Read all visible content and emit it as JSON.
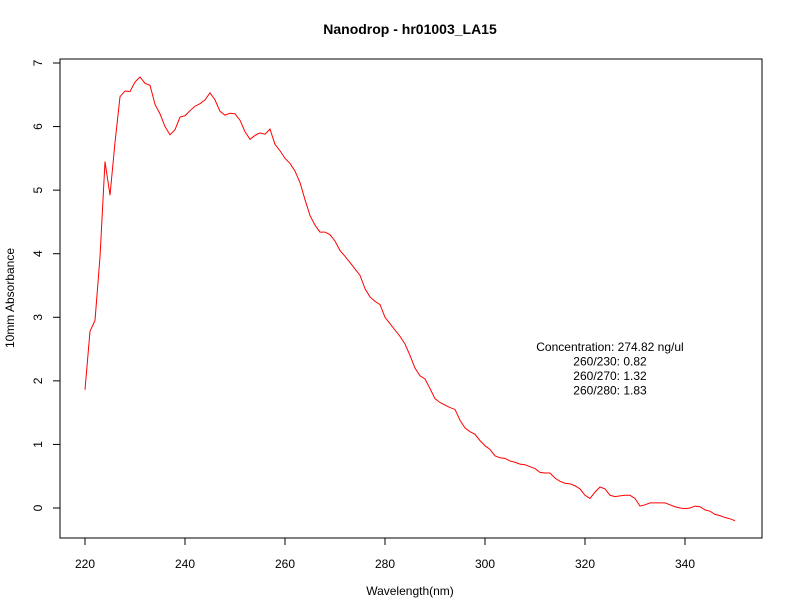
{
  "chart_data": {
    "type": "line",
    "title": "Nanodrop - hr01003_LA15",
    "xlabel": "Wavelength(nm)",
    "ylabel": "10mm Absorbance",
    "xlim": [
      220,
      350
    ],
    "ylim": [
      0,
      7
    ],
    "xticks": [
      220,
      240,
      260,
      280,
      300,
      320,
      340
    ],
    "yticks": [
      0,
      1,
      2,
      3,
      4,
      5,
      6,
      7
    ],
    "grid": false,
    "line_color": "#ff0000",
    "series": [
      {
        "x": [
          220,
          221,
          222,
          223,
          224,
          225,
          226,
          227,
          228,
          229,
          230,
          231,
          232,
          233,
          234,
          235,
          236,
          237,
          238,
          239,
          240,
          241,
          242,
          243,
          244,
          245,
          246,
          247,
          248,
          249,
          250,
          251,
          252,
          253,
          254,
          255,
          256,
          257,
          258,
          259,
          260,
          261,
          262,
          263,
          264,
          265,
          266,
          267,
          268,
          269,
          270,
          271,
          272,
          273,
          274,
          275,
          276,
          277,
          278,
          279,
          280,
          281,
          282,
          283,
          284,
          285,
          286,
          287,
          288,
          289,
          290,
          291,
          292,
          293,
          294,
          295,
          296,
          297,
          298,
          299,
          300,
          301,
          302,
          303,
          304,
          305,
          306,
          307,
          308,
          309,
          310,
          311,
          312,
          313,
          314,
          315,
          316,
          317,
          318,
          319,
          320,
          321,
          322,
          323,
          324,
          325,
          326,
          327,
          328,
          329,
          330,
          331,
          332,
          333,
          334,
          335,
          336,
          337,
          338,
          339,
          340,
          341,
          342,
          343,
          344,
          345,
          346,
          347,
          348,
          349,
          350
        ],
        "values": [
          1.86,
          2.78,
          2.95,
          3.95,
          5.45,
          4.92,
          5.75,
          6.47,
          6.56,
          6.55,
          6.7,
          6.78,
          6.68,
          6.65,
          6.35,
          6.2,
          6.0,
          5.87,
          5.95,
          6.15,
          6.17,
          6.25,
          6.32,
          6.36,
          6.42,
          6.53,
          6.42,
          6.24,
          6.18,
          6.21,
          6.2,
          6.1,
          5.92,
          5.8,
          5.86,
          5.9,
          5.88,
          5.96,
          5.72,
          5.62,
          5.5,
          5.42,
          5.3,
          5.12,
          4.85,
          4.6,
          4.45,
          4.34,
          4.34,
          4.3,
          4.2,
          4.05,
          3.96,
          3.86,
          3.76,
          3.66,
          3.45,
          3.32,
          3.25,
          3.2,
          3.0,
          2.9,
          2.8,
          2.7,
          2.58,
          2.4,
          2.2,
          2.08,
          2.03,
          1.88,
          1.72,
          1.66,
          1.62,
          1.58,
          1.55,
          1.38,
          1.26,
          1.2,
          1.16,
          1.06,
          0.98,
          0.92,
          0.82,
          0.79,
          0.78,
          0.74,
          0.72,
          0.69,
          0.68,
          0.65,
          0.62,
          0.56,
          0.55,
          0.55,
          0.47,
          0.42,
          0.39,
          0.38,
          0.35,
          0.3,
          0.2,
          0.15,
          0.25,
          0.33,
          0.3,
          0.2,
          0.18,
          0.19,
          0.2,
          0.2,
          0.15,
          0.03,
          0.05,
          0.08,
          0.08,
          0.08,
          0.08,
          0.05,
          0.02,
          0.0,
          -0.01,
          0.0,
          0.03,
          0.02,
          -0.03,
          -0.05,
          -0.1,
          -0.12,
          -0.15,
          -0.17,
          -0.2
        ]
      }
    ],
    "annotations": [
      "Concentration: 274.82 ng/ul",
      "260/230: 0.82",
      "260/270: 1.32",
      "260/280: 1.83"
    ]
  }
}
